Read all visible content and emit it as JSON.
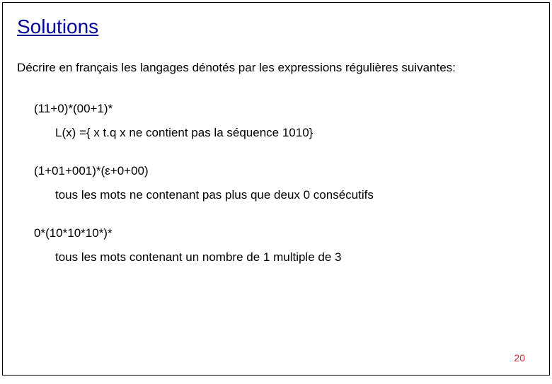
{
  "title": "Solutions",
  "intro": "Décrire en français les langages dénotés par les expressions régulières suivantes:",
  "items": [
    {
      "expr": "(11+0)*(00+1)*",
      "answer": "L(x) ={ x t.q x ne contient pas la séquence 1010}"
    },
    {
      "expr": "(1+01+001)*(ε+0+00)",
      "answer": "tous les mots ne contenant pas plus que deux 0 consécutifs"
    },
    {
      "expr": "0*(10*10*10*)*",
      "answer": "tous les mots contenant un nombre de 1 multiple de 3"
    }
  ],
  "pagenum": "20",
  "colors": {
    "title": "#000099",
    "text": "#000000",
    "pagenum": "#cc3333",
    "border": "#000000",
    "background": "#ffffff"
  },
  "fontsizes": {
    "title": 28,
    "body": 17,
    "pagenum": 14
  }
}
